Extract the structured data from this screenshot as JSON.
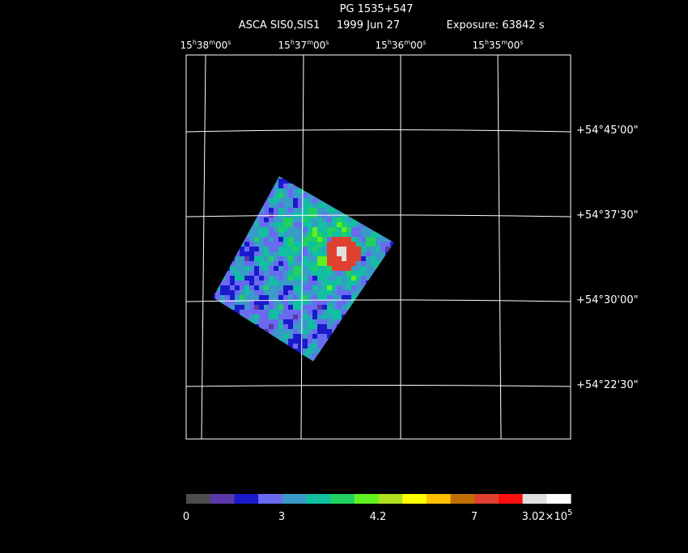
{
  "header": {
    "title": "PG 1535+547",
    "instrument": "ASCA SIS0,SIS1",
    "date": "1999 Jun 27",
    "exposure": "Exposure: 63842 s"
  },
  "ra_labels": [
    [
      "15",
      "h",
      "38",
      "m",
      "00",
      "s"
    ],
    [
      "15",
      "h",
      "37",
      "m",
      "00",
      "s"
    ],
    [
      "15",
      "h",
      "36",
      "m",
      "00",
      "s"
    ],
    [
      "15",
      "h",
      "35",
      "m",
      "00",
      "s"
    ]
  ],
  "dec_labels": [
    "+54°45'00\"",
    "+54°37'30\"",
    "+54°30'00\"",
    "+54°22'30\""
  ],
  "colorbar": {
    "colors": [
      "#4d4d4d",
      "#5a3aa8",
      "#1a1acc",
      "#6a6af0",
      "#3a9ac8",
      "#10c0a0",
      "#20d060",
      "#60f020",
      "#b0e020",
      "#ffff00",
      "#ffc000",
      "#c07000",
      "#e04030",
      "#ff1010",
      "#e0e0e0",
      "#ffffff"
    ],
    "labels": [
      "0",
      "3",
      "4.2",
      "7"
    ],
    "max_label": {
      "mantissa": "3.02×10",
      "exponent": "5"
    }
  }
}
